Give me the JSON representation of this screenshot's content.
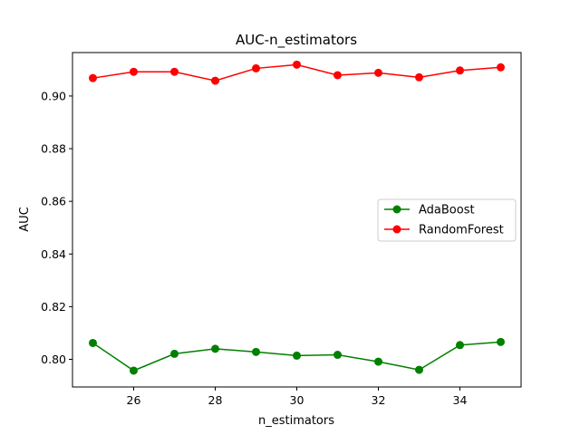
{
  "chart_data": {
    "type": "line",
    "title": "AUC-n_estimators",
    "xlabel": "n_estimators",
    "ylabel": "AUC",
    "x": [
      25,
      26,
      27,
      28,
      29,
      30,
      31,
      32,
      33,
      34,
      35
    ],
    "xlim": [
      24.5,
      35.5
    ],
    "ylim": [
      0.7895,
      0.9165
    ],
    "xticks": [
      26,
      28,
      30,
      32,
      34
    ],
    "yticks": [
      0.8,
      0.82,
      0.84,
      0.86,
      0.88,
      0.9
    ],
    "ytick_labels": [
      "0.80",
      "0.82",
      "0.84",
      "0.86",
      "0.88",
      "0.90"
    ],
    "grid": false,
    "legend_position": "center-right",
    "series": [
      {
        "name": "AdaBoost",
        "color": "#008000",
        "marker": "circle",
        "values": [
          0.8062,
          0.7957,
          0.8021,
          0.804,
          0.8028,
          0.8014,
          0.8017,
          0.7991,
          0.796,
          0.8054,
          0.8066
        ]
      },
      {
        "name": "RandomForest",
        "color": "#ff0000",
        "marker": "circle",
        "values": [
          0.9068,
          0.9092,
          0.9092,
          0.9058,
          0.9105,
          0.9119,
          0.9079,
          0.9088,
          0.9071,
          0.9097,
          0.9109
        ]
      }
    ]
  }
}
